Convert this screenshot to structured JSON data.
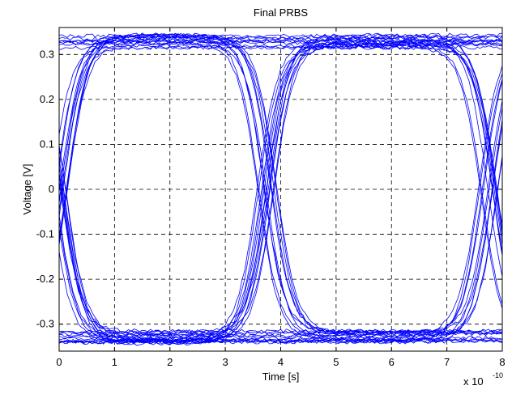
{
  "chart_data": {
    "type": "line",
    "title": "Final PRBS",
    "xlabel": "Time [s]",
    "ylabel": "Voltage [V]",
    "x_multiplier_label": "x 10",
    "x_multiplier_exponent": "-10",
    "xlim": [
      0,
      8
    ],
    "ylim": [
      -0.36,
      0.36
    ],
    "x_ticks": [
      0,
      1,
      2,
      3,
      4,
      5,
      6,
      7,
      8
    ],
    "x_tick_labels": [
      "0",
      "1",
      "2",
      "3",
      "4",
      "5",
      "6",
      "7",
      "8"
    ],
    "y_ticks": [
      -0.3,
      -0.2,
      -0.1,
      0,
      0.1,
      0.2,
      0.3
    ],
    "y_tick_labels": [
      "-0.3",
      "-0.2",
      "-0.1",
      "0",
      "0.1",
      "0.2",
      "0.3"
    ],
    "grid": true,
    "grid_style": "dashed",
    "line_color": "#0000ff",
    "description_note": "eye diagram of overlaid PRBS traces; two bit periods per trace",
    "crossings_x": [
      0.0,
      3.75,
      7.75
    ],
    "high_level": 0.33,
    "low_level": -0.33,
    "series_samples": {
      "x": [
        0,
        0.5,
        1.0,
        2.0,
        3.0,
        3.4,
        3.75,
        4.1,
        4.5,
        5.0,
        6.0,
        7.0,
        7.4,
        7.75,
        8.0
      ],
      "rising_then_high": [
        -0.32,
        0.1,
        0.28,
        0.32,
        0.33,
        0.22,
        0.0,
        -0.2,
        -0.3,
        -0.32,
        -0.33,
        -0.33,
        -0.2,
        0.0,
        0.15
      ],
      "falling_then_low": [
        0.32,
        -0.1,
        -0.28,
        -0.32,
        -0.33,
        -0.22,
        0.0,
        0.2,
        0.3,
        0.32,
        0.33,
        0.33,
        0.2,
        0.0,
        -0.15
      ]
    }
  }
}
